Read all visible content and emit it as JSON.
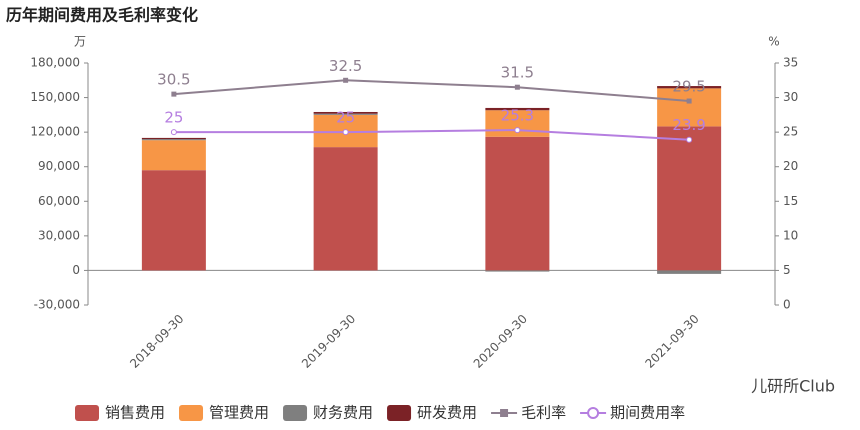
{
  "chart_data": {
    "type": "bar_line",
    "title": "历年期间费用及毛利率变化",
    "y_unit": "万",
    "y2_unit": "%",
    "categories": [
      "2018-09-30",
      "2019-09-30",
      "2020-09-30",
      "2021-09-30"
    ],
    "ylim": [
      -30000,
      180000
    ],
    "yticks": [
      {
        "value": -30000,
        "label": "-30,000"
      },
      0,
      {
        "value": 30000,
        "label": "30,000"
      },
      {
        "value": 60000,
        "label": "60,000"
      },
      {
        "value": 90000,
        "label": "90,000"
      },
      {
        "value": 120000,
        "label": "120,000"
      },
      {
        "value": 150000,
        "label": "150,000"
      },
      {
        "value": 180000,
        "label": "180,000"
      }
    ],
    "y2lim": [
      0,
      35
    ],
    "y2ticks": [
      0,
      5,
      10,
      15,
      20,
      25,
      30,
      35
    ],
    "series": [
      {
        "name": "销售费用",
        "type": "bar",
        "color": "#c0504d",
        "values": [
          87000,
          107000,
          116000,
          125000
        ]
      },
      {
        "name": "管理费用",
        "type": "bar",
        "color": "#f79646",
        "values": [
          26000,
          28000,
          23000,
          33000
        ]
      },
      {
        "name": "财务费用",
        "type": "bar",
        "color": "#7f7f7f",
        "values": [
          1000,
          1000,
          -1000,
          -3000
        ]
      },
      {
        "name": "研发费用",
        "type": "bar",
        "color": "#7b2226",
        "values": [
          1000,
          1500,
          2000,
          2000
        ]
      },
      {
        "name": "毛利率",
        "type": "line",
        "axis": "y2",
        "color": "#8e7f8f",
        "marker": "square",
        "values": [
          30.5,
          32.5,
          31.5,
          29.5
        ]
      },
      {
        "name": "期间费用率",
        "type": "line",
        "axis": "y2",
        "color": "#b57ee0",
        "marker": "circle",
        "values": [
          25,
          25,
          25.3,
          23.9
        ]
      }
    ],
    "watermark": "儿研所Club"
  }
}
